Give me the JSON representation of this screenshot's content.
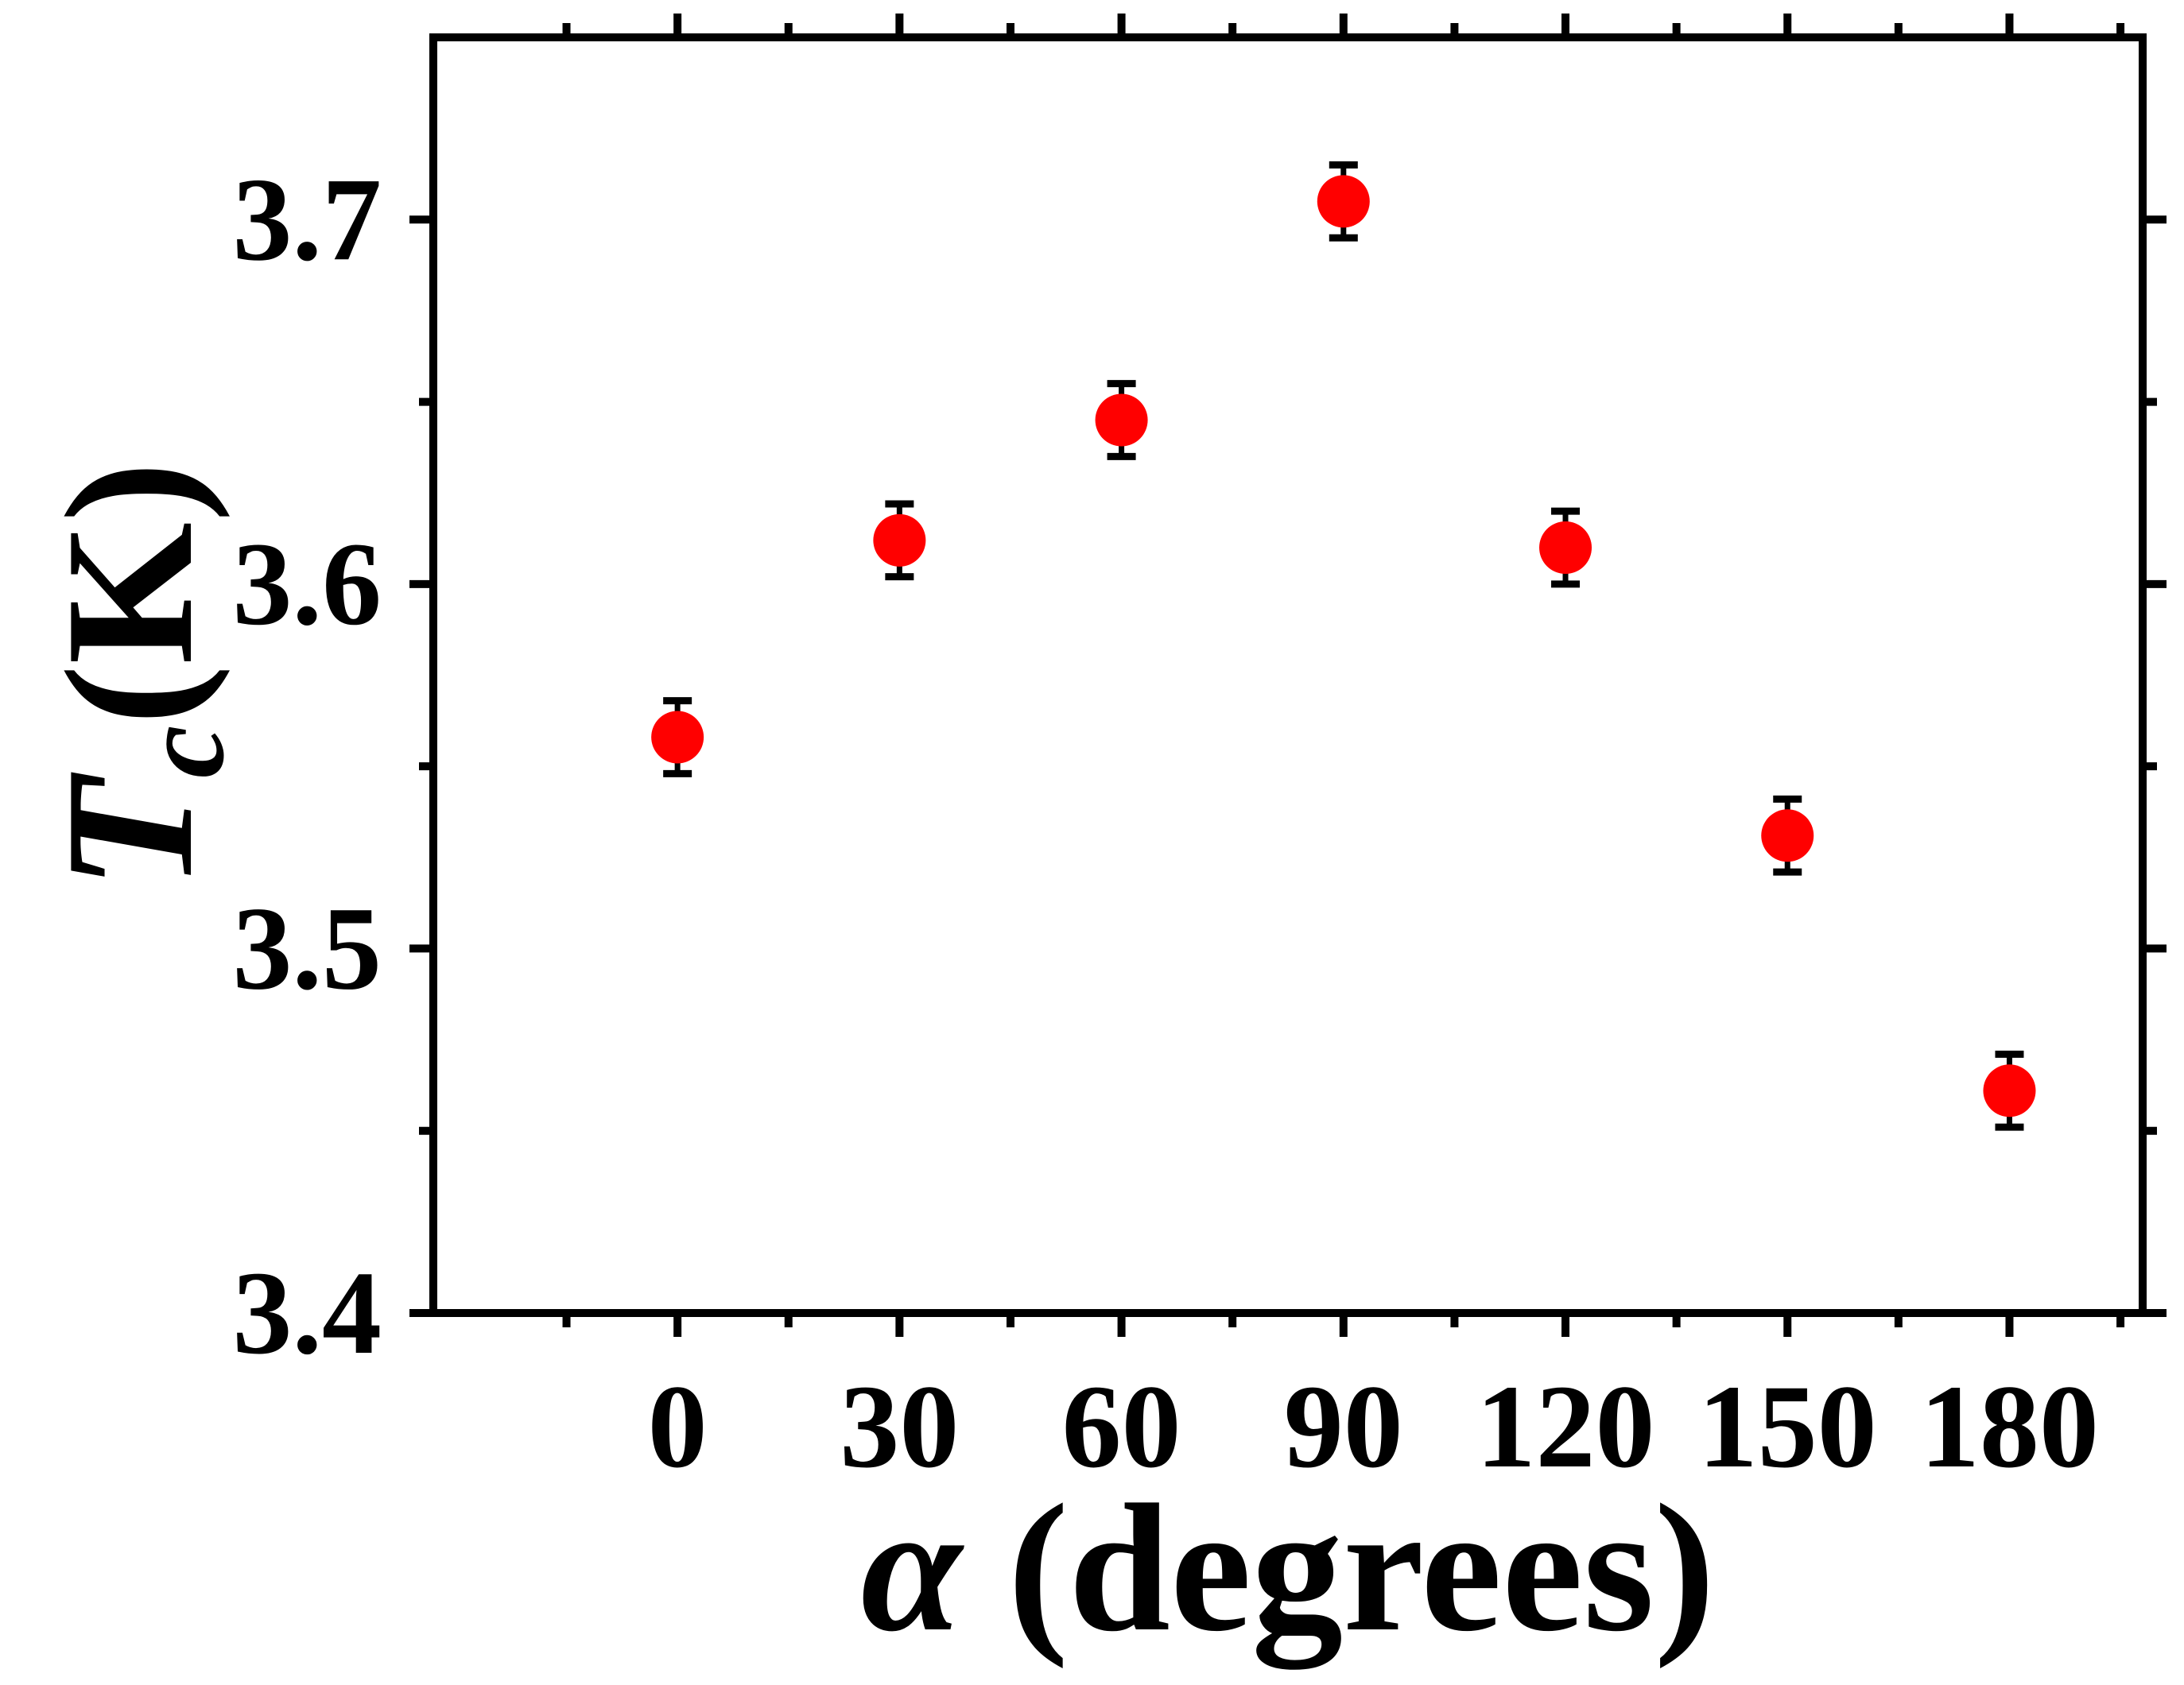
{
  "chart_data": {
    "type": "scatter",
    "title": "",
    "xlabel": {
      "symbol": "α",
      "text": "(degrees)"
    },
    "ylabel": {
      "symbol": "T",
      "subscript": "c",
      "text": "(K)"
    },
    "xlim": [
      -33,
      198
    ],
    "ylim": [
      3.4,
      3.75
    ],
    "xticks": [
      0,
      30,
      60,
      90,
      120,
      150,
      180
    ],
    "xtick_labels": [
      "0",
      "30",
      "60",
      "90",
      "120",
      "150",
      "180"
    ],
    "yticks": [
      3.4,
      3.5,
      3.6,
      3.7
    ],
    "ytick_labels": [
      "3.4",
      "3.5",
      "3.6",
      "3.7"
    ],
    "grid": false,
    "legend": null,
    "marker_color": "#ff0000",
    "errorbar_color": "#000000",
    "series": [
      {
        "x": [
          0,
          30,
          60,
          90,
          120,
          150,
          180
        ],
        "y": [
          3.558,
          3.612,
          3.645,
          3.705,
          3.61,
          3.531,
          3.461
        ],
        "yerr": [
          0.01,
          0.01,
          0.01,
          0.01,
          0.01,
          0.01,
          0.01
        ]
      }
    ]
  }
}
